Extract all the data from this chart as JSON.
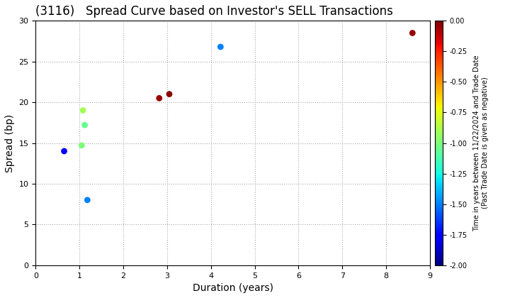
{
  "title": "(3116)   Spread Curve based on Investor's SELL Transactions",
  "xlabel": "Duration (years)",
  "ylabel": "Spread (bp)",
  "points": [
    {
      "duration": 0.65,
      "spread": 14.0,
      "time": -1.75
    },
    {
      "duration": 1.05,
      "spread": 14.7,
      "time": -1.0
    },
    {
      "duration": 1.08,
      "spread": 19.0,
      "time": -0.9
    },
    {
      "duration": 1.12,
      "spread": 17.2,
      "time": -1.05
    },
    {
      "duration": 1.18,
      "spread": 8.0,
      "time": -1.5
    },
    {
      "duration": 2.82,
      "spread": 20.5,
      "time": -0.05
    },
    {
      "duration": 3.05,
      "spread": 21.0,
      "time": -0.02
    },
    {
      "duration": 4.22,
      "spread": 26.8,
      "time": -1.5
    },
    {
      "duration": 8.6,
      "spread": 28.5,
      "time": -0.04
    }
  ],
  "cmap": "jet",
  "clim": [
    -2.0,
    0.0
  ],
  "colorbar_ticks": [
    0.0,
    -0.25,
    -0.5,
    -0.75,
    -1.0,
    -1.25,
    -1.5,
    -1.75,
    -2.0
  ],
  "colorbar_label": "Time in years between 11/22/2024 and Trade Date\n(Past Trade Date is given as negative)",
  "xlim": [
    0,
    9
  ],
  "ylim": [
    0,
    30
  ],
  "xticks": [
    0,
    1,
    2,
    3,
    4,
    5,
    6,
    7,
    8,
    9
  ],
  "yticks": [
    0,
    5,
    10,
    15,
    20,
    25,
    30
  ],
  "grid_color": "#aaaaaa",
  "bg_color": "#ffffff",
  "marker_size": 40,
  "title_fontsize": 12,
  "axis_label_fontsize": 10
}
